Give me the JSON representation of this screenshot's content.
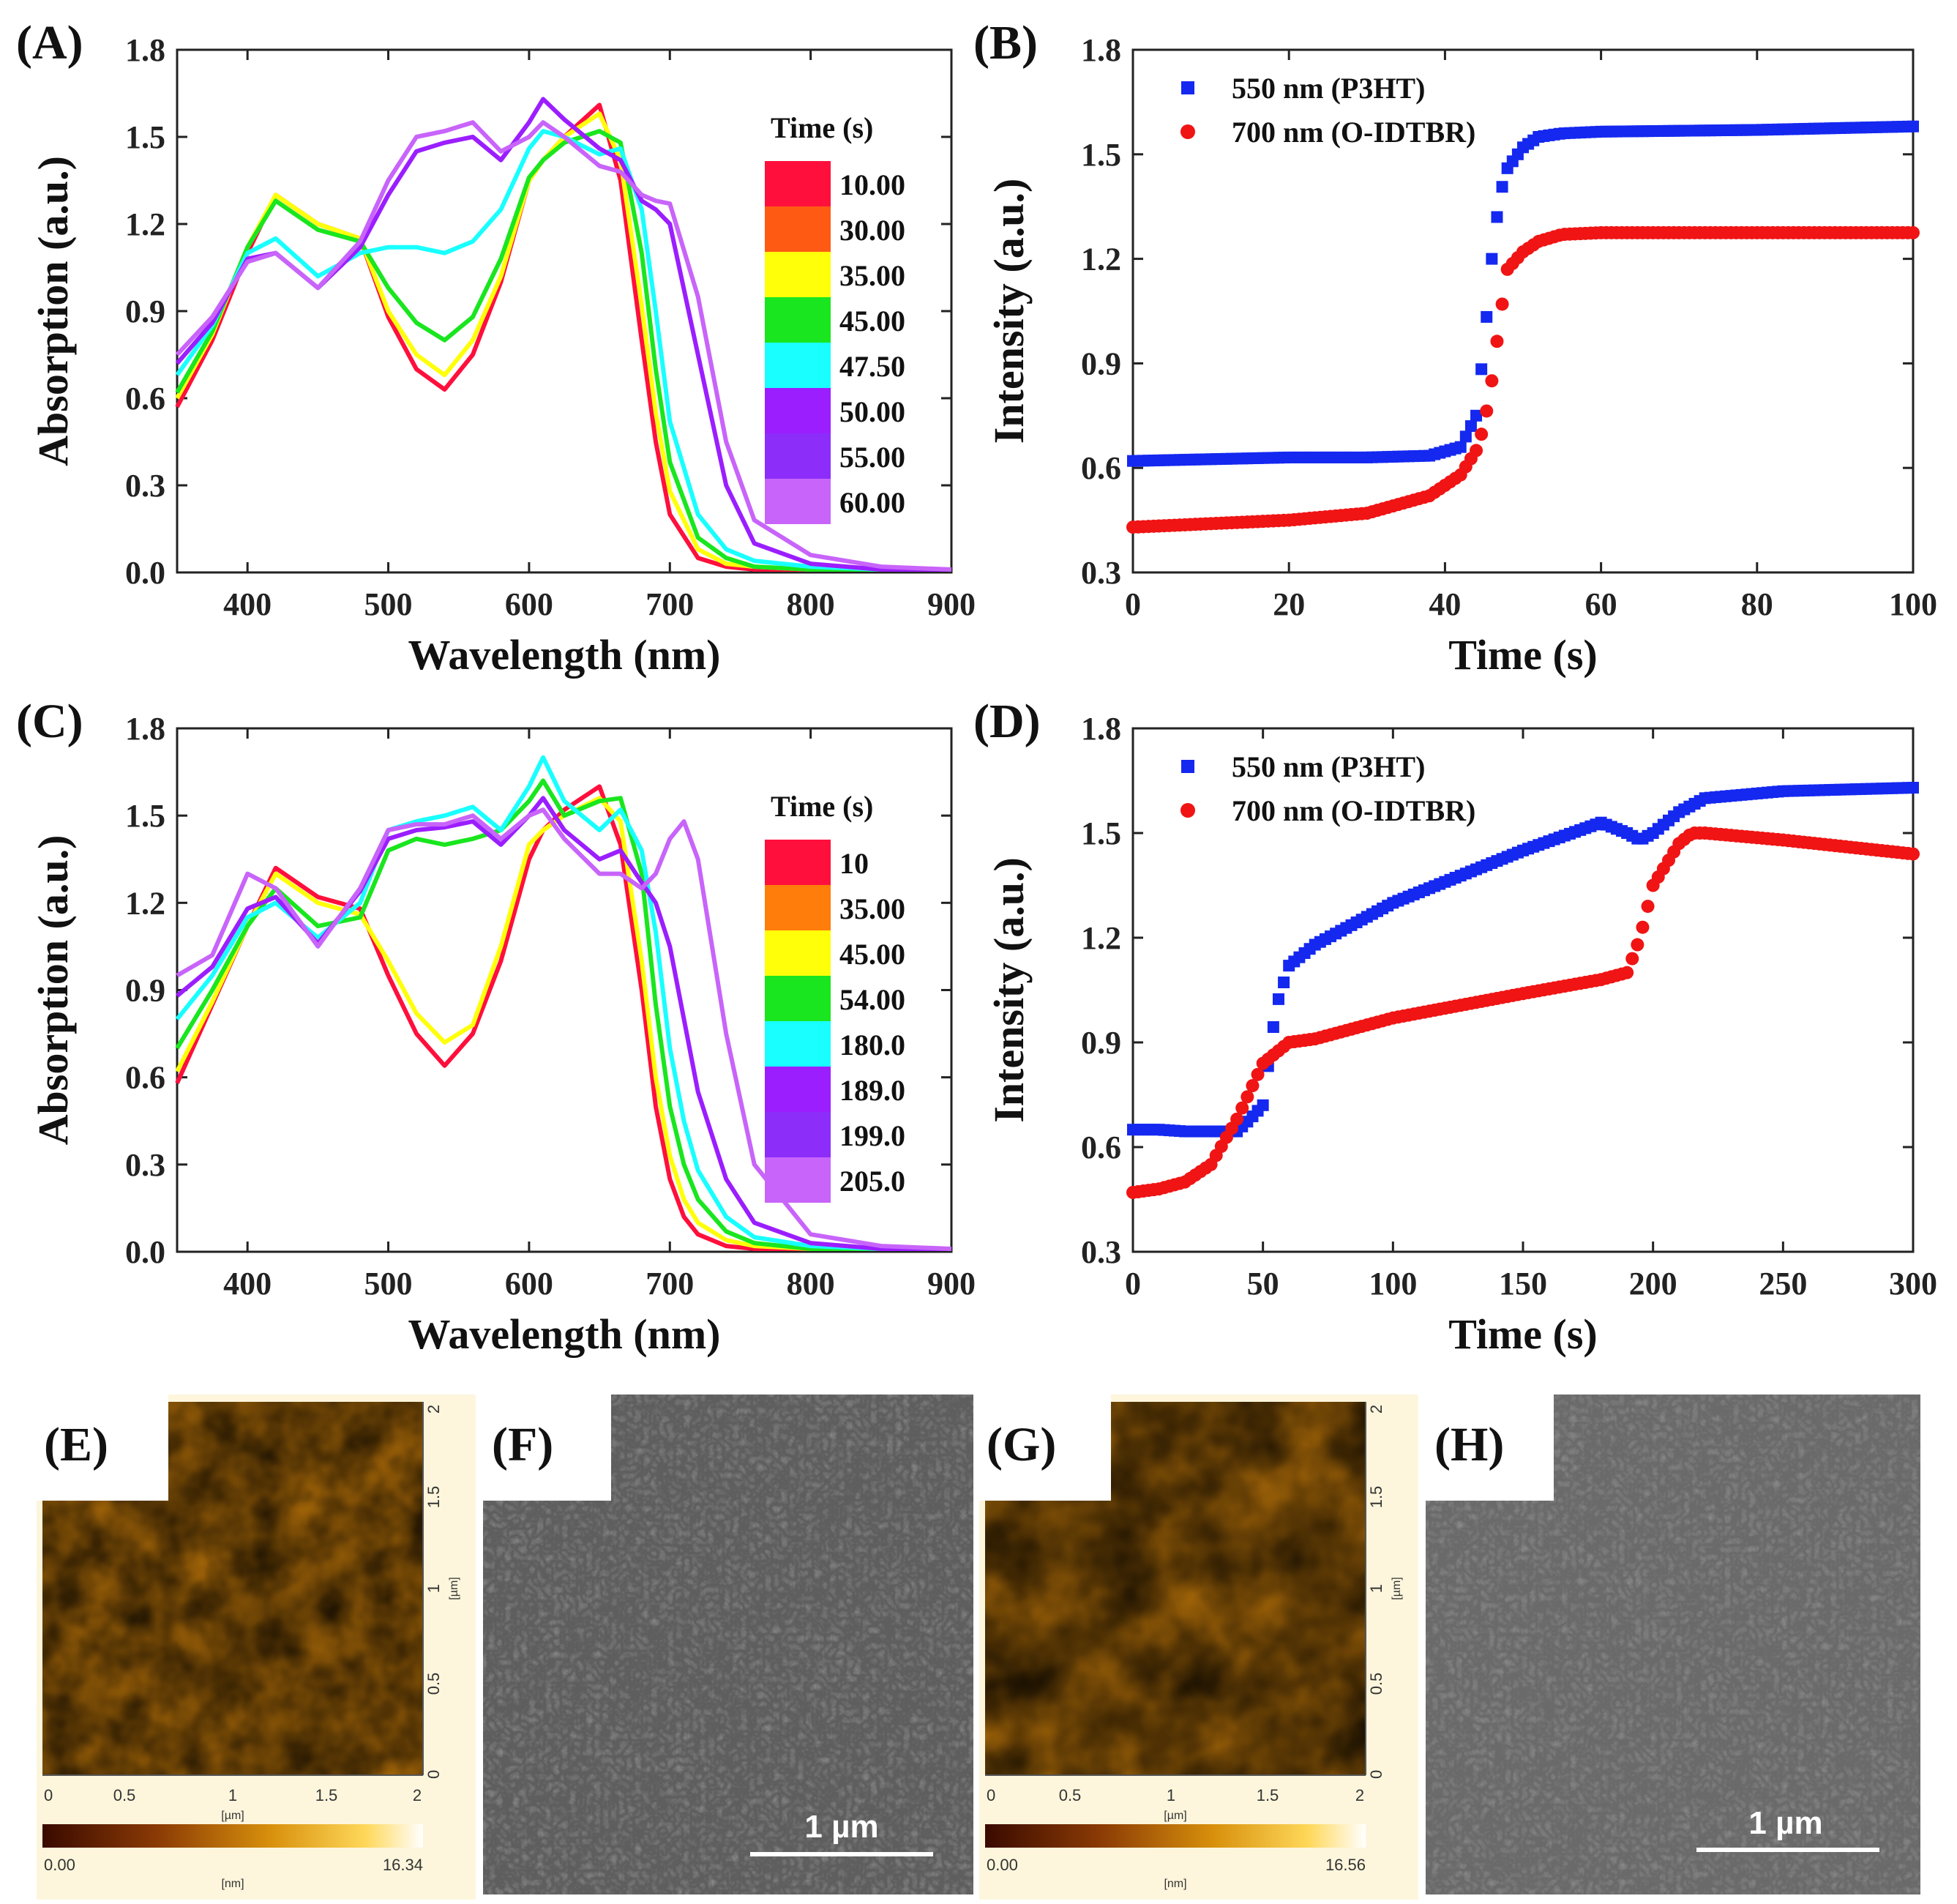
{
  "chart_data": [
    {
      "panel": "(A)",
      "type": "line",
      "xlabel": "Wavelength (nm)",
      "ylabel": "Absorption (a.u.)",
      "xlim": [
        350,
        900
      ],
      "ylim": [
        0.0,
        1.8
      ],
      "xticks": [
        "400",
        "500",
        "600",
        "700",
        "800",
        "900"
      ],
      "yticks": [
        "0.0",
        "0.3",
        "0.6",
        "0.9",
        "1.2",
        "1.5",
        "1.8"
      ],
      "legend_title": "Time (s)",
      "legend_placement": "right",
      "legend": [
        {
          "label": "10.00",
          "color": "#ff0f3c"
        },
        {
          "label": "30.00",
          "color": "#ff5a14"
        },
        {
          "label": "35.00",
          "color": "#ffff0a"
        },
        {
          "label": "45.00",
          "color": "#19e61e"
        },
        {
          "label": "47.50",
          "color": "#19ffff"
        },
        {
          "label": "50.00",
          "color": "#9b1eff"
        },
        {
          "label": "55.00",
          "color": "#8c2dfa"
        },
        {
          "label": "60.00",
          "color": "#c864fa"
        }
      ],
      "x": [
        350,
        375,
        400,
        420,
        450,
        480,
        500,
        520,
        540,
        560,
        580,
        600,
        610,
        625,
        650,
        665,
        680,
        690,
        700,
        720,
        740,
        760,
        800,
        850,
        900
      ],
      "series": [
        {
          "color": "#ff0f3c",
          "values": [
            0.57,
            0.8,
            1.1,
            1.3,
            1.2,
            1.15,
            0.88,
            0.7,
            0.63,
            0.75,
            1.0,
            1.35,
            1.42,
            1.5,
            1.61,
            1.35,
            0.8,
            0.45,
            0.2,
            0.05,
            0.02,
            0.01,
            0.01,
            0.01,
            0.01
          ]
        },
        {
          "color": "#ffff0a",
          "values": [
            0.6,
            0.82,
            1.12,
            1.3,
            1.2,
            1.15,
            0.9,
            0.75,
            0.68,
            0.8,
            1.02,
            1.35,
            1.42,
            1.5,
            1.58,
            1.42,
            0.92,
            0.55,
            0.28,
            0.08,
            0.03,
            0.02,
            0.01,
            0.01,
            0.01
          ]
        },
        {
          "color": "#19e61e",
          "values": [
            0.62,
            0.83,
            1.12,
            1.28,
            1.18,
            1.14,
            0.98,
            0.86,
            0.8,
            0.88,
            1.08,
            1.36,
            1.42,
            1.48,
            1.52,
            1.48,
            1.1,
            0.7,
            0.38,
            0.12,
            0.05,
            0.02,
            0.01,
            0.01,
            0.01
          ]
        },
        {
          "color": "#19ffff",
          "values": [
            0.68,
            0.85,
            1.1,
            1.15,
            1.02,
            1.1,
            1.12,
            1.12,
            1.1,
            1.14,
            1.25,
            1.46,
            1.52,
            1.5,
            1.44,
            1.46,
            1.25,
            0.9,
            0.52,
            0.2,
            0.08,
            0.04,
            0.02,
            0.01,
            0.01
          ]
        },
        {
          "color": "#9b1eff",
          "values": [
            0.72,
            0.86,
            1.08,
            1.1,
            0.98,
            1.12,
            1.3,
            1.45,
            1.48,
            1.5,
            1.42,
            1.55,
            1.63,
            1.56,
            1.46,
            1.42,
            1.28,
            1.25,
            1.2,
            0.75,
            0.3,
            0.1,
            0.03,
            0.01,
            0.01
          ]
        },
        {
          "color": "#c864fa",
          "values": [
            0.75,
            0.88,
            1.07,
            1.1,
            0.98,
            1.14,
            1.35,
            1.5,
            1.52,
            1.55,
            1.45,
            1.5,
            1.55,
            1.5,
            1.4,
            1.38,
            1.3,
            1.28,
            1.27,
            0.95,
            0.45,
            0.18,
            0.06,
            0.02,
            0.01
          ]
        }
      ]
    },
    {
      "panel": "(B)",
      "type": "scatter",
      "xlabel": "Time (s)",
      "ylabel": "Intensity (a.u.)",
      "xlim": [
        0,
        100
      ],
      "ylim": [
        0.3,
        1.8
      ],
      "xticks": [
        "0",
        "20",
        "40",
        "60",
        "80",
        "100"
      ],
      "yticks": [
        "0.3",
        "0.6",
        "0.9",
        "1.2",
        "1.5",
        "1.8"
      ],
      "legend_placement": "top-left",
      "x": [
        0,
        10,
        20,
        30,
        38,
        42,
        44,
        45,
        46,
        47,
        48,
        50,
        52,
        55,
        60,
        80,
        100
      ],
      "series": [
        {
          "name": "550 nm (P3HT)",
          "color": "#1428f0",
          "marker": "square",
          "values": [
            0.62,
            0.625,
            0.63,
            0.63,
            0.635,
            0.66,
            0.75,
            0.95,
            1.2,
            1.38,
            1.46,
            1.52,
            1.55,
            1.56,
            1.565,
            1.57,
            1.58
          ]
        },
        {
          "name": "700 nm (O-IDTBR)",
          "color": "#f01414",
          "marker": "circle",
          "values": [
            0.43,
            0.44,
            0.45,
            0.47,
            0.52,
            0.58,
            0.65,
            0.72,
            0.85,
            1.02,
            1.17,
            1.22,
            1.25,
            1.27,
            1.275,
            1.275,
            1.275
          ]
        }
      ]
    },
    {
      "panel": "(C)",
      "type": "line",
      "xlabel": "Wavelength (nm)",
      "ylabel": "Absorption (a.u.)",
      "xlim": [
        350,
        900
      ],
      "ylim": [
        0.0,
        1.8
      ],
      "xticks": [
        "400",
        "500",
        "600",
        "700",
        "800",
        "900"
      ],
      "yticks": [
        "0.0",
        "0.3",
        "0.6",
        "0.9",
        "1.2",
        "1.5",
        "1.8"
      ],
      "legend_title": "Time (s)",
      "legend_placement": "right",
      "legend": [
        {
          "label": "10",
          "color": "#ff0f3c"
        },
        {
          "label": "35.00",
          "color": "#ff7d0a"
        },
        {
          "label": "45.00",
          "color": "#ffff0a"
        },
        {
          "label": "54.00",
          "color": "#19e61e"
        },
        {
          "label": "180.0",
          "color": "#19ffff"
        },
        {
          "label": "189.0",
          "color": "#9b1eff"
        },
        {
          "label": "199.0",
          "color": "#8c2dfa"
        },
        {
          "label": "205.0",
          "color": "#c864fa"
        }
      ],
      "x": [
        350,
        375,
        400,
        420,
        450,
        480,
        500,
        520,
        540,
        560,
        580,
        600,
        610,
        625,
        650,
        665,
        680,
        690,
        700,
        710,
        720,
        740,
        760,
        800,
        850,
        900
      ],
      "series": [
        {
          "color": "#ff0f3c",
          "values": [
            0.58,
            0.85,
            1.12,
            1.32,
            1.22,
            1.18,
            0.95,
            0.75,
            0.64,
            0.75,
            1.0,
            1.35,
            1.45,
            1.52,
            1.6,
            1.4,
            0.9,
            0.5,
            0.25,
            0.12,
            0.06,
            0.02,
            0.01,
            0.01,
            0.01,
            0.01
          ]
        },
        {
          "color": "#ffff0a",
          "values": [
            0.62,
            0.86,
            1.12,
            1.3,
            1.2,
            1.16,
            1.0,
            0.82,
            0.72,
            0.78,
            1.05,
            1.4,
            1.45,
            1.5,
            1.56,
            1.48,
            1.0,
            0.6,
            0.33,
            0.18,
            0.1,
            0.04,
            0.02,
            0.01,
            0.01,
            0.01
          ]
        },
        {
          "color": "#19e61e",
          "values": [
            0.7,
            0.9,
            1.12,
            1.25,
            1.12,
            1.15,
            1.38,
            1.42,
            1.4,
            1.42,
            1.45,
            1.55,
            1.62,
            1.5,
            1.55,
            1.56,
            1.3,
            0.85,
            0.5,
            0.3,
            0.18,
            0.07,
            0.03,
            0.01,
            0.01,
            0.01
          ]
        },
        {
          "color": "#19ffff",
          "values": [
            0.8,
            0.95,
            1.15,
            1.2,
            1.08,
            1.2,
            1.45,
            1.48,
            1.5,
            1.53,
            1.45,
            1.6,
            1.7,
            1.55,
            1.45,
            1.52,
            1.38,
            1.1,
            0.7,
            0.45,
            0.28,
            0.12,
            0.05,
            0.02,
            0.01,
            0.01
          ]
        },
        {
          "color": "#9b1eff",
          "values": [
            0.88,
            0.98,
            1.18,
            1.22,
            1.06,
            1.24,
            1.42,
            1.45,
            1.46,
            1.48,
            1.4,
            1.5,
            1.56,
            1.45,
            1.35,
            1.38,
            1.27,
            1.2,
            1.05,
            0.8,
            0.55,
            0.25,
            0.1,
            0.03,
            0.01,
            0.01
          ]
        },
        {
          "color": "#c864fa",
          "values": [
            0.95,
            1.02,
            1.3,
            1.25,
            1.05,
            1.25,
            1.45,
            1.47,
            1.47,
            1.5,
            1.42,
            1.5,
            1.52,
            1.42,
            1.3,
            1.3,
            1.25,
            1.3,
            1.42,
            1.48,
            1.35,
            0.75,
            0.3,
            0.06,
            0.02,
            0.01
          ]
        }
      ]
    },
    {
      "panel": "(D)",
      "type": "scatter",
      "xlabel": "Time (s)",
      "ylabel": "Intensity (a.u.)",
      "xlim": [
        0,
        300
      ],
      "ylim": [
        0.3,
        1.8
      ],
      "xticks": [
        "0",
        "50",
        "100",
        "150",
        "200",
        "250",
        "300"
      ],
      "yticks": [
        "0.3",
        "0.6",
        "0.9",
        "1.2",
        "1.5",
        "1.8"
      ],
      "legend_placement": "top-left",
      "x": [
        0,
        10,
        20,
        30,
        40,
        45,
        50,
        55,
        60,
        70,
        80,
        100,
        150,
        180,
        190,
        195,
        200,
        210,
        215,
        220,
        250,
        300
      ],
      "series": [
        {
          "name": "550 nm (P3HT)",
          "color": "#1428f0",
          "marker": "square",
          "values": [
            0.65,
            0.65,
            0.645,
            0.645,
            0.645,
            0.68,
            0.72,
            1.0,
            1.12,
            1.18,
            1.22,
            1.3,
            1.45,
            1.53,
            1.5,
            1.48,
            1.5,
            1.56,
            1.58,
            1.6,
            1.62,
            1.63
          ]
        },
        {
          "name": "700 nm (O-IDTBR)",
          "color": "#f01414",
          "marker": "circle",
          "values": [
            0.47,
            0.48,
            0.5,
            0.55,
            0.68,
            0.76,
            0.84,
            0.87,
            0.9,
            0.91,
            0.93,
            0.97,
            1.04,
            1.08,
            1.1,
            1.2,
            1.35,
            1.47,
            1.5,
            1.5,
            1.48,
            1.44
          ]
        }
      ]
    }
  ],
  "images": {
    "E": {
      "label": "(E)",
      "axis_ticks": [
        "0",
        "0.5",
        "1",
        "1.5",
        "2"
      ],
      "axis_unit": "[µm]",
      "colorbar_min": "0.00",
      "colorbar_max": "16.34",
      "colorbar_unit": "[nm]"
    },
    "F": {
      "label": "(F)",
      "scale_bar": "1 µm"
    },
    "G": {
      "label": "(G)",
      "axis_ticks": [
        "0",
        "0.5",
        "1",
        "1.5",
        "2"
      ],
      "axis_unit": "[µm]",
      "colorbar_min": "0.00",
      "colorbar_max": "16.56",
      "colorbar_unit": "[nm]"
    },
    "H": {
      "label": "(H)",
      "scale_bar": "1 µm"
    }
  }
}
